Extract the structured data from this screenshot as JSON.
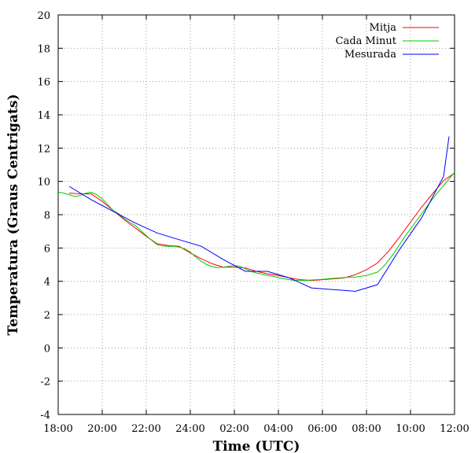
{
  "chart_data": {
    "type": "line",
    "title": "",
    "xlabel": "Time (UTC)",
    "ylabel": "Temperatura (Graus Centrigats)",
    "x_ticks": [
      "18:00",
      "20:00",
      "22:00",
      "24:00",
      "02:00",
      "04:00",
      "06:00",
      "08:00",
      "10:00",
      "12:00"
    ],
    "xlim": [
      0,
      18
    ],
    "ylim": [
      -4,
      20
    ],
    "y_ticks": [
      -4,
      -2,
      0,
      2,
      4,
      6,
      8,
      10,
      12,
      14,
      16,
      18,
      20
    ],
    "grid": true,
    "legend_position": "top-right",
    "series": [
      {
        "name": "Mitja",
        "color": "#ff0000",
        "x": [
          0.5,
          1.0,
          1.5,
          2.0,
          2.5,
          3.0,
          3.5,
          4.0,
          4.5,
          5.0,
          5.5,
          6.0,
          6.5,
          7.0,
          7.5,
          8.0,
          8.5,
          9.0,
          9.5,
          10.0,
          10.5,
          11.0,
          11.5,
          12.0,
          12.5,
          13.0,
          13.5,
          14.0,
          14.5,
          15.0,
          15.5,
          16.0,
          16.5,
          17.0,
          17.5,
          18.0
        ],
        "y": [
          9.3,
          9.25,
          9.25,
          8.8,
          8.25,
          7.7,
          7.2,
          6.7,
          6.25,
          6.15,
          6.1,
          5.7,
          5.35,
          5.05,
          4.85,
          4.85,
          4.8,
          4.6,
          4.45,
          4.35,
          4.2,
          4.1,
          4.05,
          4.1,
          4.15,
          4.2,
          4.4,
          4.7,
          5.1,
          5.8,
          6.65,
          7.55,
          8.45,
          9.25,
          10.05,
          10.5
        ]
      },
      {
        "name": "Cada Minut",
        "color": "#00cc00",
        "x": [
          0.0,
          0.25,
          0.5,
          0.75,
          1.0,
          1.25,
          1.5,
          1.75,
          2.0,
          2.25,
          2.5,
          2.75,
          3.0,
          3.25,
          3.5,
          3.75,
          4.0,
          4.25,
          4.5,
          4.75,
          5.0,
          5.25,
          5.5,
          5.75,
          6.0,
          6.25,
          6.5,
          6.75,
          7.0,
          7.25,
          7.5,
          7.75,
          8.0,
          8.25,
          8.5,
          8.75,
          9.0,
          9.25,
          9.5,
          9.75,
          10.0,
          10.25,
          10.5,
          10.75,
          11.0,
          11.25,
          11.5,
          11.75,
          12.0,
          12.25,
          12.5,
          12.75,
          13.0,
          13.25,
          13.5,
          13.75,
          14.0,
          14.25,
          14.5,
          14.75,
          15.0,
          15.25,
          15.5,
          15.75,
          16.0,
          16.25,
          16.5,
          16.75,
          17.0,
          17.25,
          17.5,
          17.75,
          18.0
        ],
        "y": [
          9.35,
          9.3,
          9.2,
          9.1,
          9.15,
          9.3,
          9.35,
          9.2,
          8.95,
          8.6,
          8.25,
          8.05,
          7.75,
          7.55,
          7.35,
          7.05,
          6.75,
          6.45,
          6.2,
          6.12,
          6.1,
          6.1,
          6.05,
          5.95,
          5.75,
          5.45,
          5.2,
          5.0,
          4.88,
          4.82,
          4.85,
          4.9,
          4.95,
          4.9,
          4.75,
          4.6,
          4.5,
          4.42,
          4.35,
          4.3,
          4.22,
          4.15,
          4.1,
          4.05,
          4.05,
          4.05,
          4.08,
          4.1,
          4.12,
          4.15,
          4.18,
          4.2,
          4.22,
          4.25,
          4.25,
          4.3,
          4.35,
          4.45,
          4.55,
          4.85,
          5.25,
          5.7,
          6.2,
          6.7,
          7.15,
          7.6,
          8.05,
          8.5,
          8.95,
          9.35,
          9.75,
          10.15,
          10.55
        ]
      },
      {
        "name": "Mesurada",
        "color": "#0000ff",
        "x": [
          0.5,
          1.5,
          2.5,
          3.5,
          4.5,
          5.5,
          6.5,
          7.5,
          8.5,
          9.5,
          10.5,
          11.5,
          12.5,
          13.5,
          14.5,
          15.5,
          16.5,
          17.5
        ],
        "y": [
          9.7,
          8.9,
          8.2,
          7.5,
          6.9,
          6.5,
          6.1,
          5.3,
          4.6,
          4.6,
          4.2,
          3.6,
          3.5,
          3.4,
          3.8,
          5.9,
          7.8,
          10.3
        ]
      }
    ],
    "extra_segments": [
      {
        "series": "Mesurada",
        "x": [
          17.5,
          17.75
        ],
        "y": [
          10.3,
          12.7
        ]
      }
    ]
  }
}
